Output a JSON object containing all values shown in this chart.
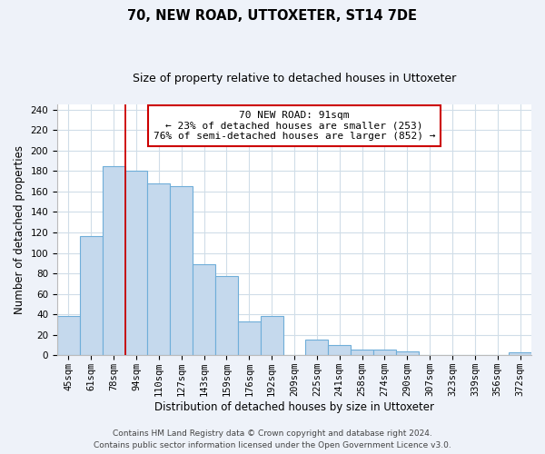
{
  "title": "70, NEW ROAD, UTTOXETER, ST14 7DE",
  "subtitle": "Size of property relative to detached houses in Uttoxeter",
  "xlabel": "Distribution of detached houses by size in Uttoxeter",
  "ylabel": "Number of detached properties",
  "bar_labels": [
    "45sqm",
    "61sqm",
    "78sqm",
    "94sqm",
    "110sqm",
    "127sqm",
    "143sqm",
    "159sqm",
    "176sqm",
    "192sqm",
    "209sqm",
    "225sqm",
    "241sqm",
    "258sqm",
    "274sqm",
    "290sqm",
    "307sqm",
    "323sqm",
    "339sqm",
    "356sqm",
    "372sqm"
  ],
  "bar_values": [
    38,
    116,
    185,
    180,
    168,
    165,
    89,
    77,
    33,
    38,
    0,
    15,
    10,
    6,
    6,
    4,
    0,
    0,
    0,
    0,
    3
  ],
  "bar_color": "#c5d9ed",
  "bar_edge_color": "#6faed9",
  "vline_color": "#cc0000",
  "vline_position": 2.5,
  "annotation_title": "70 NEW ROAD: 91sqm",
  "annotation_line1": "← 23% of detached houses are smaller (253)",
  "annotation_line2": "76% of semi-detached houses are larger (852) →",
  "annotation_box_color": "#ffffff",
  "annotation_box_edge": "#cc0000",
  "ylim": [
    0,
    245
  ],
  "yticks": [
    0,
    20,
    40,
    60,
    80,
    100,
    120,
    140,
    160,
    180,
    200,
    220,
    240
  ],
  "footer_line1": "Contains HM Land Registry data © Crown copyright and database right 2024.",
  "footer_line2": "Contains public sector information licensed under the Open Government Licence v3.0.",
  "bg_color": "#eef2f9",
  "plot_bg_color": "#ffffff",
  "title_fontsize": 10.5,
  "subtitle_fontsize": 9,
  "axis_label_fontsize": 8.5,
  "tick_fontsize": 7.5,
  "annotation_fontsize": 8,
  "footer_fontsize": 6.5,
  "grid_color": "#d0dde8"
}
